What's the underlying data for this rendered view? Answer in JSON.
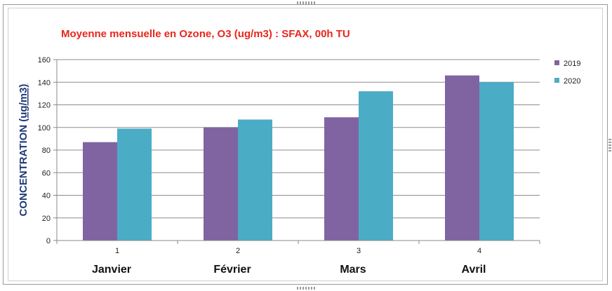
{
  "chart_data": {
    "type": "bar",
    "title": "Moyenne mensuelle en Ozone, O3  (ug/m3) : SFAX, 00h TU",
    "ylabel_main": "CONCENTRATION ",
    "ylabel_unit": "(ug/m3)",
    "categories": [
      "1",
      "2",
      "3",
      "4"
    ],
    "month_labels": [
      "Janvier",
      "Février",
      "Mars",
      "Avril"
    ],
    "series": [
      {
        "name": "2019",
        "color": "#8064a2",
        "values": [
          87,
          100,
          109,
          146
        ]
      },
      {
        "name": "2020",
        "color": "#4bacc6",
        "values": [
          99,
          107,
          132,
          140
        ]
      }
    ],
    "ylim": [
      0,
      160
    ],
    "yticks": [
      0,
      20,
      40,
      60,
      80,
      100,
      120,
      140,
      160
    ],
    "grid": true,
    "legend_position": "right"
  }
}
